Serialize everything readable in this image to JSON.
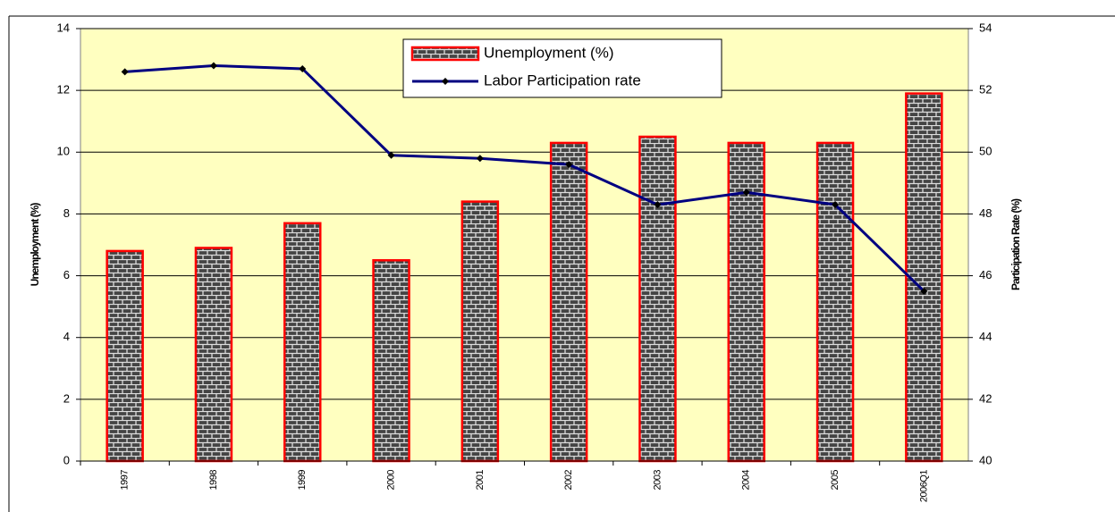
{
  "chart_data": {
    "type": "bar-line",
    "categories": [
      "1997",
      "1998",
      "1999",
      "2000",
      "2001",
      "2002",
      "2003",
      "2004",
      "2005",
      "2006Q1"
    ],
    "series": [
      {
        "name": "Unemployment (%)",
        "type": "bar",
        "color": "#ff0000",
        "values": [
          6.8,
          6.9,
          7.7,
          6.5,
          8.4,
          10.3,
          10.5,
          10.3,
          10.3,
          11.9
        ]
      },
      {
        "name": "Labor Participation rate",
        "type": "line",
        "axis": "y2",
        "color": "#000080",
        "values": [
          52.6,
          52.8,
          52.7,
          49.9,
          49.8,
          49.6,
          48.3,
          48.7,
          48.3,
          45.5
        ]
      }
    ],
    "ylabel": "Unemployment (%)",
    "y2label": "Participation Rate (%)",
    "ylim": [
      0,
      14
    ],
    "yticks": [
      0,
      2,
      4,
      6,
      8,
      10,
      12,
      14
    ],
    "y2lim": [
      40,
      54
    ],
    "y2ticks": [
      40,
      42,
      44,
      46,
      48,
      50,
      52,
      54
    ],
    "grid": true,
    "background": "#ffffc0"
  }
}
